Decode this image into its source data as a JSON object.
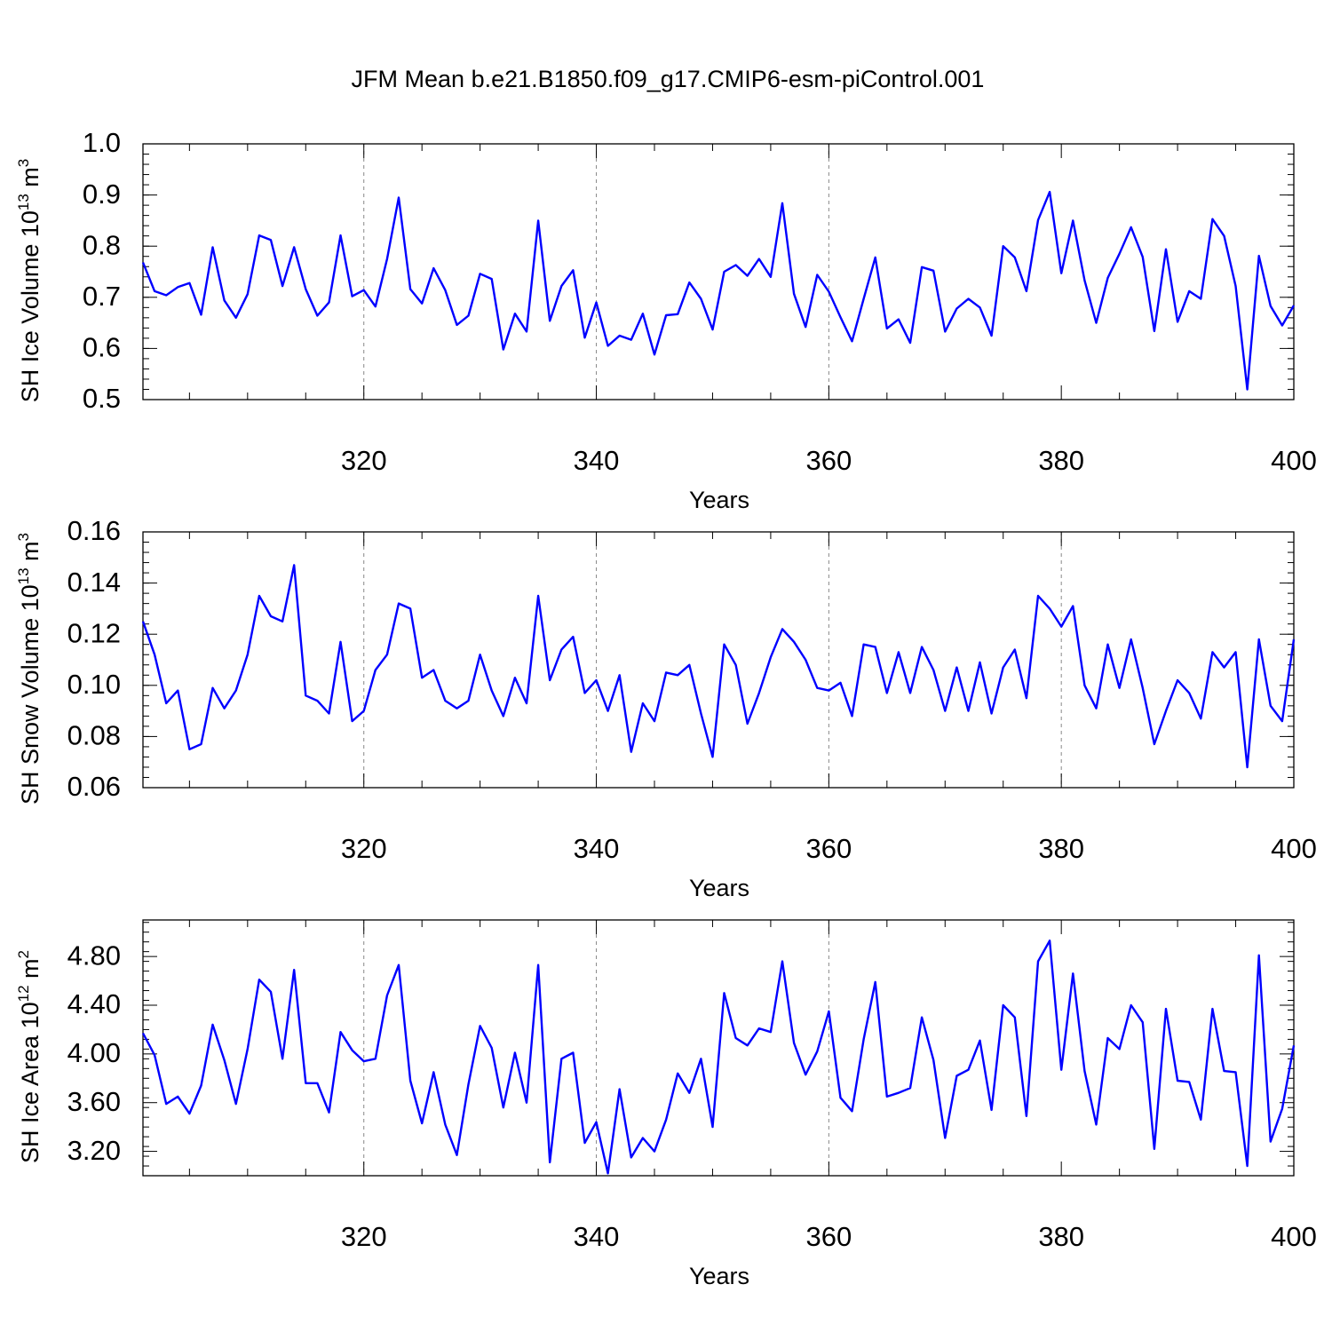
{
  "title": "JFM Mean b.e21.B1850.f09_g17.CMIP6-esm-piControl.001",
  "colors": {
    "line": "#0000ff",
    "axes": "#000000",
    "grid": "#888888"
  },
  "chart_data": [
    {
      "type": "line",
      "xlabel": "Years",
      "ylabel_main": "SH Ice Volume 10",
      "ylabel_exp": "13",
      "ylabel_unit": " m",
      "ylabel_unit_exp": "3",
      "xlim": [
        301,
        400
      ],
      "ylim": [
        0.5,
        1.0
      ],
      "xticks": [
        320,
        340,
        360,
        380,
        400
      ],
      "xtick_labels": [
        "320",
        "340",
        "360",
        "380",
        "400"
      ],
      "yticks": [
        0.5,
        0.6,
        0.7,
        0.8,
        0.9,
        1.0
      ],
      "ytick_labels": [
        "0.5",
        "0.6",
        "0.7",
        "0.8",
        "0.9",
        "1.0"
      ],
      "yminor": 0.02,
      "grid_x": [
        320,
        340,
        360
      ],
      "x_start": 301,
      "values": [
        0.768,
        0.712,
        0.704,
        0.72,
        0.728,
        0.666,
        0.798,
        0.694,
        0.66,
        0.706,
        0.821,
        0.812,
        0.722,
        0.798,
        0.716,
        0.664,
        0.69,
        0.821,
        0.702,
        0.714,
        0.682,
        0.775,
        0.895,
        0.716,
        0.688,
        0.757,
        0.714,
        0.646,
        0.664,
        0.746,
        0.736,
        0.598,
        0.668,
        0.633,
        0.85,
        0.654,
        0.722,
        0.753,
        0.621,
        0.69,
        0.605,
        0.625,
        0.617,
        0.668,
        0.588,
        0.665,
        0.667,
        0.729,
        0.697,
        0.637,
        0.75,
        0.763,
        0.742,
        0.775,
        0.74,
        0.884,
        0.707,
        0.642,
        0.744,
        0.711,
        0.661,
        0.614,
        0.697,
        0.778,
        0.639,
        0.657,
        0.611,
        0.759,
        0.752,
        0.633,
        0.678,
        0.697,
        0.68,
        0.625,
        0.8,
        0.778,
        0.712,
        0.851,
        0.906,
        0.747,
        0.85,
        0.733,
        0.65,
        0.738,
        0.785,
        0.837,
        0.779,
        0.634,
        0.794,
        0.652,
        0.712,
        0.697,
        0.853,
        0.82,
        0.722,
        0.52,
        0.781,
        0.683,
        0.645,
        0.684
      ]
    },
    {
      "type": "line",
      "xlabel": "Years",
      "ylabel_main": "SH Snow Volume 10",
      "ylabel_exp": "13",
      "ylabel_unit": " m",
      "ylabel_unit_exp": "3",
      "xlim": [
        301,
        400
      ],
      "ylim": [
        0.06,
        0.16
      ],
      "xticks": [
        320,
        340,
        360,
        380,
        400
      ],
      "xtick_labels": [
        "320",
        "340",
        "360",
        "380",
        "400"
      ],
      "yticks": [
        0.06,
        0.08,
        0.1,
        0.12,
        0.14,
        0.16
      ],
      "ytick_labels": [
        "0.06",
        "0.08",
        "0.10",
        "0.12",
        "0.14",
        "0.16"
      ],
      "yminor": 0.004,
      "grid_x": [
        320,
        340,
        360,
        380
      ],
      "x_start": 301,
      "values": [
        0.125,
        0.112,
        0.093,
        0.098,
        0.075,
        0.077,
        0.099,
        0.091,
        0.098,
        0.112,
        0.135,
        0.127,
        0.125,
        0.147,
        0.096,
        0.094,
        0.089,
        0.117,
        0.086,
        0.09,
        0.106,
        0.112,
        0.132,
        0.13,
        0.103,
        0.106,
        0.094,
        0.091,
        0.094,
        0.112,
        0.098,
        0.088,
        0.103,
        0.093,
        0.135,
        0.102,
        0.114,
        0.119,
        0.097,
        0.102,
        0.09,
        0.104,
        0.074,
        0.093,
        0.086,
        0.105,
        0.104,
        0.108,
        0.089,
        0.072,
        0.116,
        0.108,
        0.085,
        0.097,
        0.111,
        0.122,
        0.117,
        0.11,
        0.099,
        0.098,
        0.101,
        0.088,
        0.116,
        0.115,
        0.097,
        0.113,
        0.097,
        0.115,
        0.106,
        0.09,
        0.107,
        0.09,
        0.109,
        0.089,
        0.107,
        0.114,
        0.095,
        0.135,
        0.13,
        0.123,
        0.131,
        0.1,
        0.091,
        0.116,
        0.099,
        0.118,
        0.099,
        0.077,
        0.09,
        0.102,
        0.097,
        0.087,
        0.113,
        0.107,
        0.113,
        0.068,
        0.118,
        0.092,
        0.086,
        0.118
      ]
    },
    {
      "type": "line",
      "xlabel": "Years",
      "ylabel_main": "SH Ice Area 10",
      "ylabel_exp": "12",
      "ylabel_unit": " m",
      "ylabel_unit_exp": "2",
      "xlim": [
        301,
        400
      ],
      "ylim": [
        3.0,
        5.1
      ],
      "xticks": [
        320,
        340,
        360,
        380,
        400
      ],
      "xtick_labels": [
        "320",
        "340",
        "360",
        "380",
        "400"
      ],
      "yticks": [
        3.2,
        3.6,
        4.0,
        4.4,
        4.8
      ],
      "ytick_labels": [
        "3.20",
        "3.60",
        "4.00",
        "4.40",
        "4.80"
      ],
      "yminor": 0.08,
      "grid_x": [
        320,
        340,
        360
      ],
      "x_start": 301,
      "values": [
        4.17,
        3.99,
        3.59,
        3.65,
        3.51,
        3.74,
        4.24,
        3.95,
        3.59,
        4.04,
        4.61,
        4.51,
        3.96,
        4.69,
        3.76,
        3.76,
        3.52,
        4.18,
        4.03,
        3.94,
        3.96,
        4.48,
        4.73,
        3.78,
        3.43,
        3.85,
        3.42,
        3.17,
        3.75,
        4.23,
        4.05,
        3.56,
        4.01,
        3.6,
        4.73,
        3.11,
        3.96,
        4.01,
        3.27,
        3.44,
        3.02,
        3.71,
        3.15,
        3.31,
        3.2,
        3.46,
        3.84,
        3.68,
        3.96,
        3.4,
        4.5,
        4.13,
        4.07,
        4.21,
        4.18,
        4.76,
        4.09,
        3.83,
        4.02,
        4.35,
        3.64,
        3.53,
        4.12,
        4.59,
        3.65,
        3.68,
        3.72,
        4.3,
        3.95,
        3.31,
        3.82,
        3.87,
        4.11,
        3.54,
        4.4,
        4.3,
        3.49,
        4.76,
        4.93,
        3.87,
        4.66,
        3.86,
        3.42,
        4.13,
        4.04,
        4.4,
        4.26,
        3.22,
        4.37,
        3.78,
        3.77,
        3.46,
        4.37,
        3.86,
        3.85,
        3.08,
        4.81,
        3.28,
        3.55,
        4.07
      ]
    }
  ]
}
